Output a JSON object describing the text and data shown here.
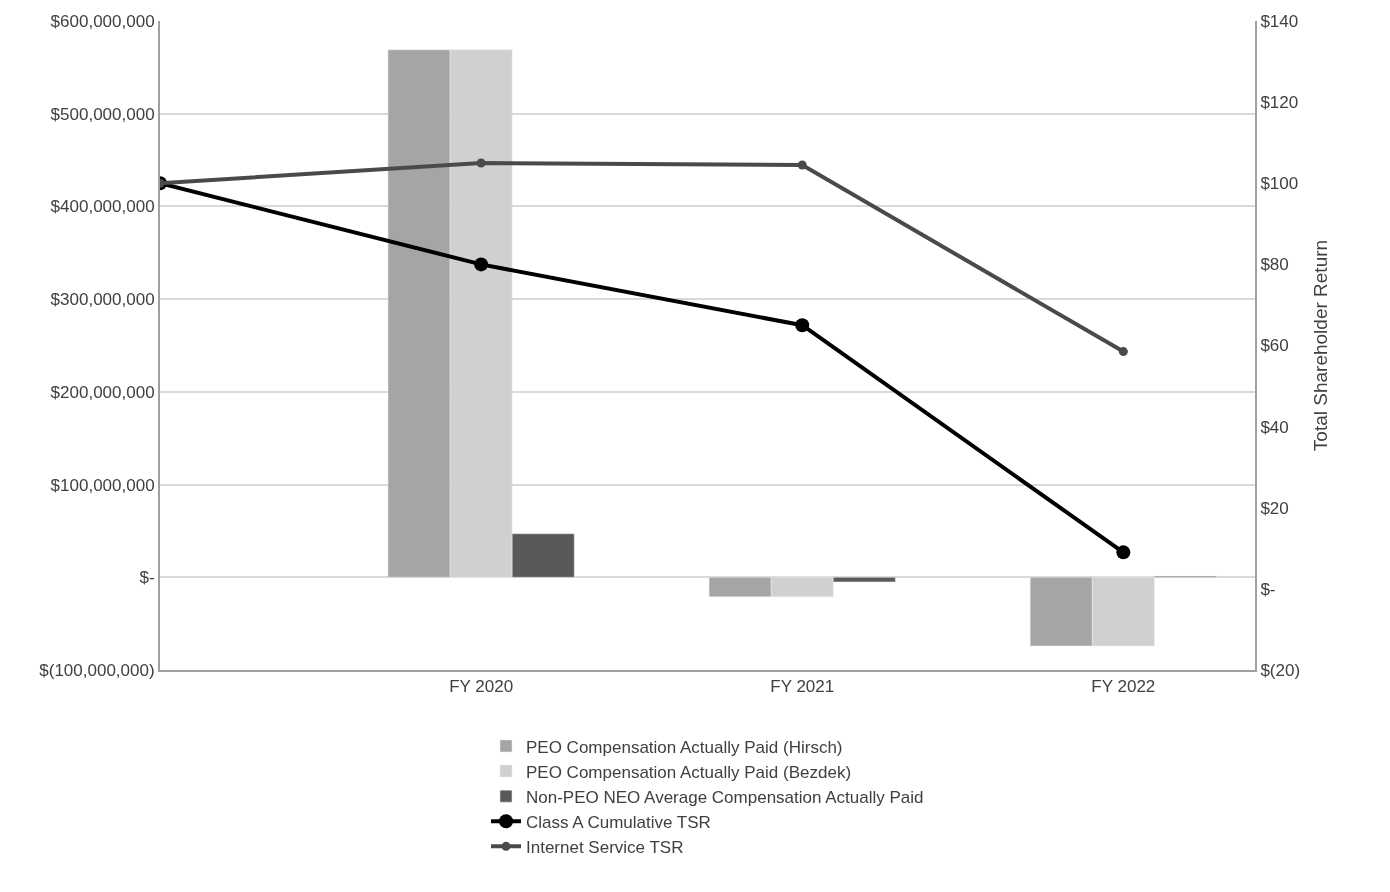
{
  "chart_data": {
    "type": "bar",
    "categories": [
      null,
      "FY 2020",
      "FY 2021",
      "FY 2022"
    ],
    "series": [
      {
        "name": "PEO Compensation Actually Paid (Hirsch)",
        "color": "#a5a5a5",
        "values": [
          null,
          569000000,
          -21000000,
          -74000000
        ]
      },
      {
        "name": "PEO Compensation Actually Paid (Bezdek)",
        "color": "#d0d0d0",
        "values": [
          null,
          569000000,
          -21000000,
          -74000000
        ]
      },
      {
        "name": "Non-PEO NEO Average Compensation Actually Paid",
        "color": "#595959",
        "values": [
          null,
          47000000,
          -5000000,
          1000000
        ]
      },
      {
        "name": "Class A Cumulative TSR",
        "type": "line",
        "axis": "y2",
        "color": "#000000",
        "values": [
          100,
          80,
          65,
          9
        ]
      },
      {
        "name": "Internet Service TSR",
        "type": "line",
        "axis": "y2",
        "color": "#4a4a4a",
        "values": [
          100,
          105,
          104.5,
          58.5
        ]
      }
    ],
    "y2label": "Total Shareholder Return",
    "ylim": [
      -100000000,
      600000000
    ],
    "yticks": [
      {
        "value": -100000000,
        "label": "$(100,000,000)"
      },
      {
        "value": 0,
        "label": "$-"
      },
      {
        "value": 100000000,
        "label": "$100,000,000"
      },
      {
        "value": 200000000,
        "label": "$200,000,000"
      },
      {
        "value": 300000000,
        "label": "$300,000,000"
      },
      {
        "value": 400000000,
        "label": "$400,000,000"
      },
      {
        "value": 500000000,
        "label": "$500,000,000"
      },
      {
        "value": 600000000,
        "label": "$600,000,000"
      }
    ],
    "y2lim": [
      -20,
      140
    ],
    "y2ticks": [
      {
        "value": -20,
        "label": "$(20)"
      },
      {
        "value": 0,
        "label": "$-"
      },
      {
        "value": 20,
        "label": "$20"
      },
      {
        "value": 40,
        "label": "$40"
      },
      {
        "value": 60,
        "label": "$60"
      },
      {
        "value": 80,
        "label": "$80"
      },
      {
        "value": 100,
        "label": "$100"
      },
      {
        "value": 120,
        "label": "$120"
      },
      {
        "value": 140,
        "label": "$140"
      }
    ],
    "grid": "y",
    "legend": "bottom",
    "marker": "circle"
  }
}
